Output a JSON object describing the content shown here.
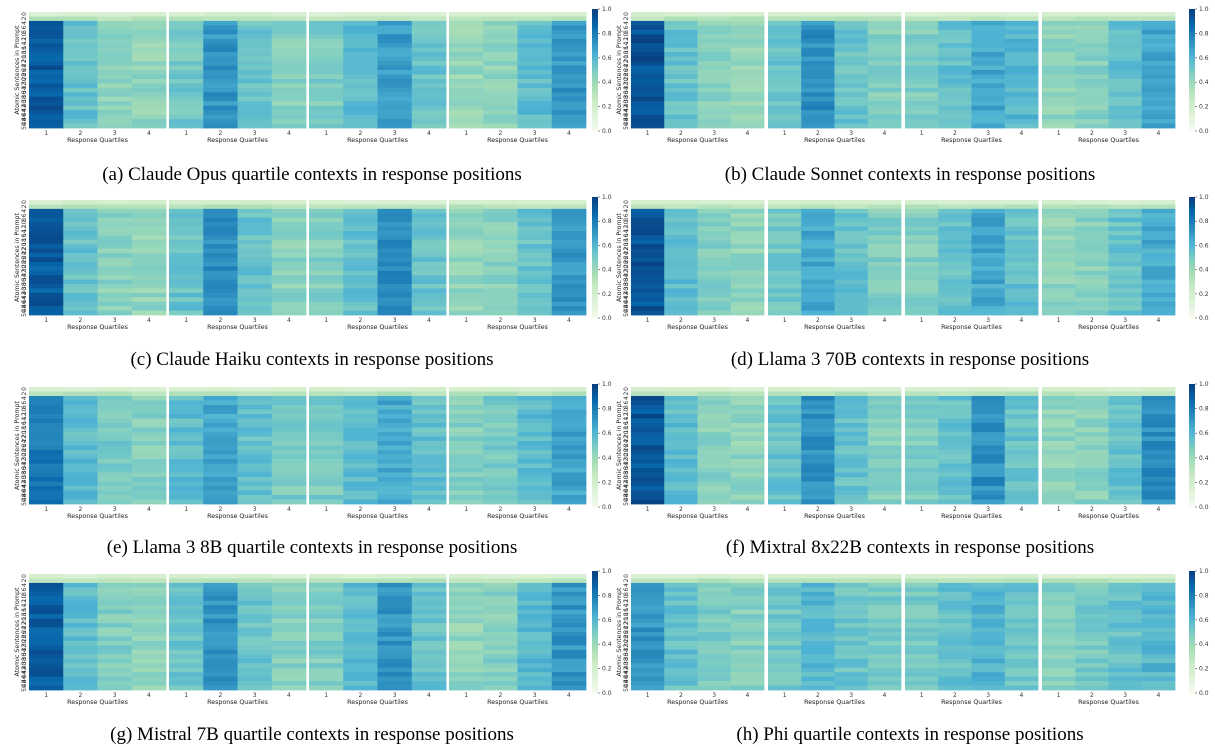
{
  "figure": {
    "x_label": "Response Quartiles",
    "y_label": "Atomic Sentences in Prompt",
    "x_ticks": [
      "1",
      "2",
      "3",
      "4"
    ],
    "y_ticks": [
      "0",
      "2",
      "4",
      "6",
      "8",
      "10",
      "12",
      "14",
      "16",
      "18",
      "20",
      "22",
      "24",
      "26",
      "28",
      "30",
      "32",
      "34",
      "36",
      "38",
      "40",
      "42",
      "44",
      "46",
      "48",
      "50"
    ],
    "colorbar_ticks": [
      "0.0",
      "0.2",
      "0.4",
      "0.6",
      "0.8",
      "1.0"
    ],
    "colormap": [
      "#f7fcf0",
      "#e0f3db",
      "#ccebc5",
      "#a8ddb5",
      "#7bccc4",
      "#4eb3d3",
      "#2b8cbe",
      "#0868ac",
      "#084081"
    ]
  },
  "chart_data": [
    {
      "type": "heatmap",
      "caption": "(a) Claude Opus quartile contexts in response positions",
      "vmin": 0,
      "vmax": 1,
      "rows": 26,
      "panels": [
        {
          "response_quartile": 1,
          "column_means": [
            0.92,
            0.56,
            0.45,
            0.44
          ]
        },
        {
          "response_quartile": 2,
          "column_means": [
            0.52,
            0.72,
            0.54,
            0.46
          ]
        },
        {
          "response_quartile": 3,
          "column_means": [
            0.49,
            0.58,
            0.7,
            0.55
          ]
        },
        {
          "response_quartile": 4,
          "column_means": [
            0.43,
            0.45,
            0.58,
            0.72
          ]
        }
      ]
    },
    {
      "type": "heatmap",
      "caption": "(b) Claude Sonnet contexts in response positions",
      "vmin": 0,
      "vmax": 1,
      "rows": 26,
      "panels": [
        {
          "response_quartile": 1,
          "column_means": [
            0.95,
            0.55,
            0.46,
            0.44
          ]
        },
        {
          "response_quartile": 2,
          "column_means": [
            0.56,
            0.74,
            0.55,
            0.47
          ]
        },
        {
          "response_quartile": 3,
          "column_means": [
            0.48,
            0.56,
            0.66,
            0.6
          ]
        },
        {
          "response_quartile": 4,
          "column_means": [
            0.44,
            0.47,
            0.57,
            0.66
          ]
        }
      ]
    },
    {
      "type": "heatmap",
      "caption": "(c) Claude Haiku contexts in response positions",
      "vmin": 0,
      "vmax": 1,
      "rows": 26,
      "panels": [
        {
          "response_quartile": 1,
          "column_means": [
            0.92,
            0.55,
            0.46,
            0.44
          ]
        },
        {
          "response_quartile": 2,
          "column_means": [
            0.55,
            0.74,
            0.55,
            0.46
          ]
        },
        {
          "response_quartile": 3,
          "column_means": [
            0.48,
            0.56,
            0.74,
            0.55
          ]
        },
        {
          "response_quartile": 4,
          "column_means": [
            0.44,
            0.46,
            0.55,
            0.72
          ]
        }
      ]
    },
    {
      "type": "heatmap",
      "caption": "(d) Llama 3 70B contexts in response positions",
      "vmin": 0,
      "vmax": 1,
      "rows": 26,
      "panels": [
        {
          "response_quartile": 1,
          "column_means": [
            0.94,
            0.58,
            0.47,
            0.44
          ]
        },
        {
          "response_quartile": 2,
          "column_means": [
            0.52,
            0.66,
            0.56,
            0.48
          ]
        },
        {
          "response_quartile": 3,
          "column_means": [
            0.47,
            0.55,
            0.66,
            0.56
          ]
        },
        {
          "response_quartile": 4,
          "column_means": [
            0.44,
            0.46,
            0.55,
            0.65
          ]
        }
      ]
    },
    {
      "type": "heatmap",
      "caption": "(e) Llama 3 8B quartile contexts in response positions",
      "vmin": 0,
      "vmax": 1,
      "rows": 26,
      "panels": [
        {
          "response_quartile": 1,
          "column_means": [
            0.82,
            0.58,
            0.5,
            0.47
          ]
        },
        {
          "response_quartile": 2,
          "column_means": [
            0.58,
            0.66,
            0.56,
            0.5
          ]
        },
        {
          "response_quartile": 3,
          "column_means": [
            0.5,
            0.58,
            0.65,
            0.56
          ]
        },
        {
          "response_quartile": 4,
          "column_means": [
            0.47,
            0.5,
            0.58,
            0.67
          ]
        }
      ]
    },
    {
      "type": "heatmap",
      "caption": "(f) Mixtral 8x22B contexts in response positions",
      "vmin": 0,
      "vmax": 1,
      "rows": 26,
      "panels": [
        {
          "response_quartile": 1,
          "column_means": [
            0.93,
            0.58,
            0.46,
            0.44
          ]
        },
        {
          "response_quartile": 2,
          "column_means": [
            0.55,
            0.74,
            0.56,
            0.47
          ]
        },
        {
          "response_quartile": 3,
          "column_means": [
            0.49,
            0.56,
            0.74,
            0.55
          ]
        },
        {
          "response_quartile": 4,
          "column_means": [
            0.44,
            0.46,
            0.56,
            0.74
          ]
        }
      ]
    },
    {
      "type": "heatmap",
      "caption": "(g) Mistral 7B quartile contexts in response positions",
      "vmin": 0,
      "vmax": 1,
      "rows": 26,
      "panels": [
        {
          "response_quartile": 1,
          "column_means": [
            0.9,
            0.58,
            0.48,
            0.45
          ]
        },
        {
          "response_quartile": 2,
          "column_means": [
            0.55,
            0.72,
            0.55,
            0.47
          ]
        },
        {
          "response_quartile": 3,
          "column_means": [
            0.49,
            0.58,
            0.72,
            0.55
          ]
        },
        {
          "response_quartile": 4,
          "column_means": [
            0.44,
            0.47,
            0.6,
            0.72
          ]
        }
      ]
    },
    {
      "type": "heatmap",
      "caption": "(h) Phi quartile contexts in response positions",
      "vmin": 0,
      "vmax": 1,
      "rows": 26,
      "panels": [
        {
          "response_quartile": 1,
          "column_means": [
            0.72,
            0.56,
            0.5,
            0.47
          ]
        },
        {
          "response_quartile": 2,
          "column_means": [
            0.52,
            0.6,
            0.54,
            0.5
          ]
        },
        {
          "response_quartile": 3,
          "column_means": [
            0.5,
            0.56,
            0.62,
            0.54
          ]
        },
        {
          "response_quartile": 4,
          "column_means": [
            0.47,
            0.5,
            0.55,
            0.6
          ]
        }
      ]
    }
  ]
}
